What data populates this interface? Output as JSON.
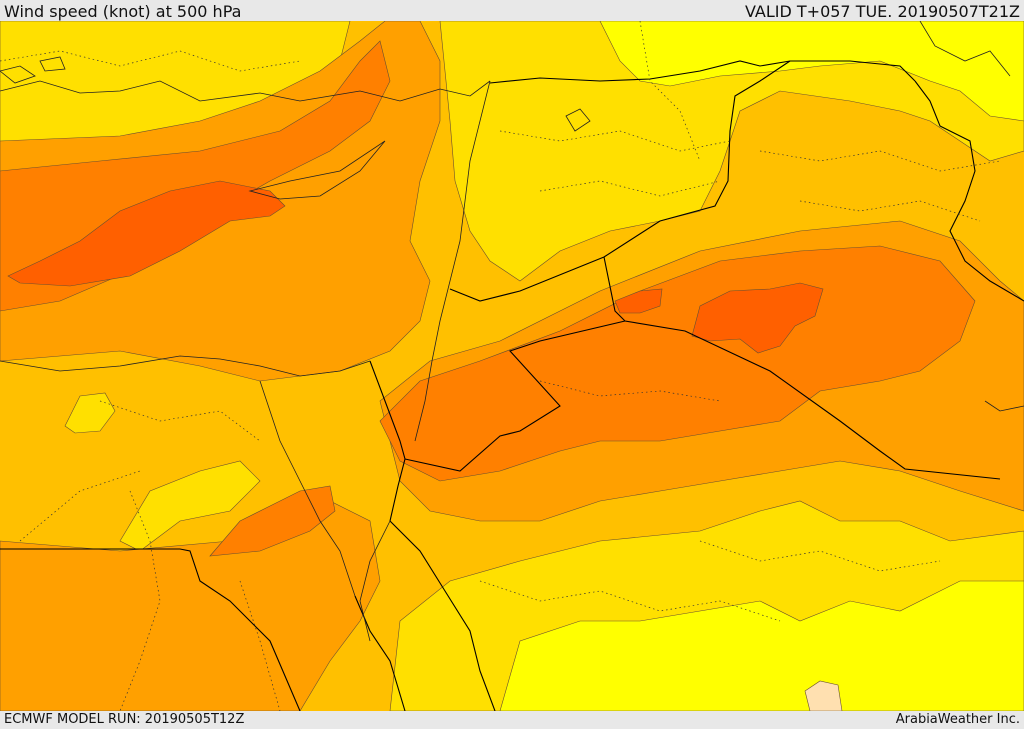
{
  "header": {
    "title": "Wind speed (knot) at 500 hPa",
    "valid": "VALID T+057 TUE. 20190507T21Z"
  },
  "footer": {
    "model_run": "ECMWF MODEL RUN: 20190505T12Z",
    "credit": "ArabiaWeather Inc."
  },
  "map": {
    "colors": {
      "level_1": "#fffff0",
      "level_2": "#ffff00",
      "level_3": "#ffe000",
      "level_4": "#ffc000",
      "level_5": "#ffa000",
      "level_6": "#ff8000",
      "level_7": "#ff6000",
      "light_patch": "#ffe0b0"
    }
  }
}
